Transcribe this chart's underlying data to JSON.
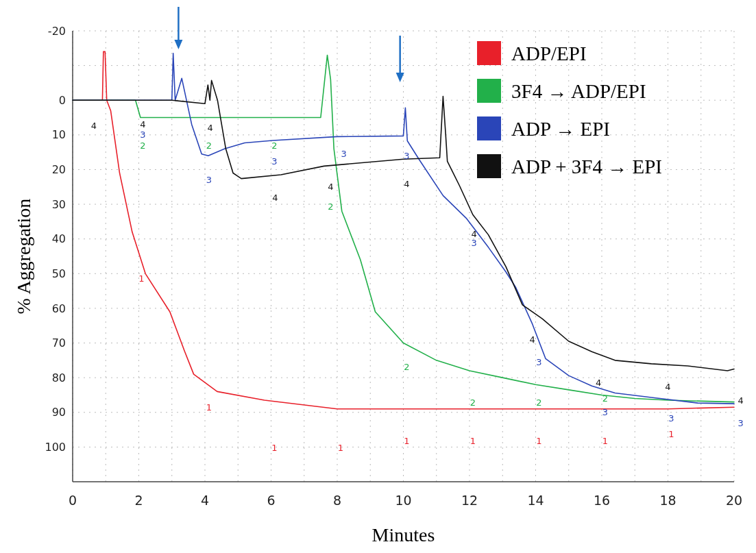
{
  "chart_data": {
    "type": "line",
    "xlabel": "Minutes",
    "ylabel": "% Aggregation",
    "xlim": [
      0,
      20
    ],
    "ylim": [
      110,
      -20
    ],
    "xticks": [
      0,
      {
        "value": 1,
        "label": null
      },
      2,
      {
        "value": 3,
        "label": null
      },
      4,
      {
        "value": 5,
        "label": null
      },
      6,
      {
        "value": 7,
        "label": null
      },
      8,
      {
        "value": 9,
        "label": null
      },
      10,
      {
        "value": 11,
        "label": null
      },
      12,
      {
        "value": 13,
        "label": null
      },
      14,
      {
        "value": 15,
        "label": null
      },
      16,
      {
        "value": 17,
        "label": null
      },
      18,
      {
        "value": 19,
        "label": null
      },
      20
    ],
    "yticks": [
      -20,
      {
        "value": -10,
        "label": null
      },
      0,
      10,
      20,
      30,
      40,
      50,
      60,
      70,
      80,
      90,
      100
    ],
    "grid": true,
    "legend": "top right",
    "line_style": "solid",
    "marker": "none",
    "series": [
      {
        "name": "ADP/EPI",
        "color": "#e8202a",
        "x": [
          0,
          0.9,
          0.93,
          0.98,
          1.03,
          1.15,
          1.42,
          1.8,
          2.2,
          2.94,
          3.37,
          3.66,
          4.37,
          5.8,
          8,
          10,
          12,
          14,
          16,
          18,
          20
        ],
        "values": [
          0,
          0,
          -14,
          -14,
          0,
          3,
          21,
          38,
          50,
          61,
          72,
          79,
          84,
          86.5,
          89,
          89,
          89,
          89,
          89,
          89,
          88.5
        ]
      },
      {
        "name": "3F4 → ADP/EPI",
        "color": "#22b04a",
        "x": [
          0,
          1.9,
          2.05,
          4,
          6,
          7.5,
          7.7,
          7.8,
          7.9,
          8.14,
          8.7,
          9.15,
          10,
          11,
          12,
          13,
          14,
          15,
          16,
          17,
          18,
          20
        ],
        "values": [
          0,
          0,
          5,
          5,
          5,
          5,
          -13,
          -6,
          14,
          32,
          46,
          61,
          70,
          75,
          78,
          80,
          82,
          83.5,
          85,
          86,
          86.5,
          87
        ]
      },
      {
        "name": "ADP → EPI",
        "color": "#2a45b8",
        "x": [
          0,
          3.0,
          3.04,
          3.1,
          3.3,
          3.6,
          3.9,
          4.1,
          4.6,
          5.2,
          6.05,
          8,
          10,
          10.06,
          10.12,
          10.47,
          11.2,
          11.9,
          12.57,
          13.1,
          13.4,
          13.9,
          14.3,
          15,
          15.7,
          16.4,
          17.5,
          18.9,
          20
        ],
        "values": [
          0,
          0,
          -13.5,
          0,
          -6.3,
          7,
          15.5,
          16,
          14,
          12.3,
          11.6,
          10.5,
          10.3,
          2.2,
          11.7,
          17,
          27.5,
          34,
          42.4,
          49.5,
          54,
          64.5,
          74.5,
          79.4,
          82.4,
          84.4,
          85.7,
          87.3,
          87.5
        ]
      },
      {
        "name": "ADP + 3F4 → EPI",
        "color": "#111111",
        "x": [
          0,
          3,
          4.0,
          4.09,
          4.15,
          4.2,
          4.38,
          4.63,
          4.85,
          5.1,
          6.3,
          7.6,
          10,
          11.1,
          11.2,
          11.28,
          11.33,
          11.7,
          12.1,
          12.57,
          13.1,
          13.6,
          14.2,
          15,
          15.7,
          16.4,
          17.5,
          18.6,
          19.8,
          20
        ],
        "values": [
          0,
          0,
          1,
          -4.4,
          0,
          -5.7,
          0,
          14,
          21,
          22.6,
          21.5,
          19,
          17,
          16.6,
          -1.1,
          10,
          17.6,
          24.7,
          33,
          38.8,
          48,
          59,
          63,
          69.5,
          72.5,
          75,
          76,
          76.6,
          78,
          77.5
        ]
      }
    ],
    "annotations": [
      "4",
      "1",
      "1",
      "1",
      "1",
      "1",
      "1",
      "1",
      "1",
      "1",
      "2",
      "2",
      "2",
      "2",
      "2",
      "2",
      "2",
      "2",
      "3",
      "3",
      "3",
      "3",
      "3",
      "3",
      "3",
      "3",
      "3",
      "3",
      "4",
      "4",
      "4",
      "4",
      "4",
      "4",
      "4",
      "4",
      "4",
      "4"
    ]
  }
}
